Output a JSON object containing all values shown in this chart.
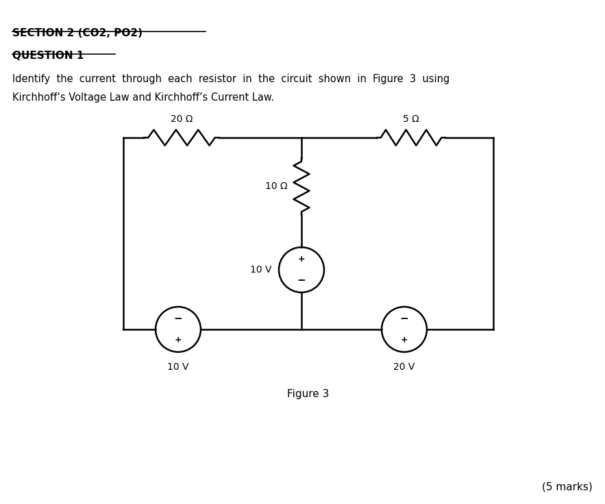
{
  "title": "SECTION 2 (CO2, PO2)",
  "question": "QUESTION 1",
  "description_line1": "Identify  the  current  through  each  resistor  in  the  circuit  shown  in  Figure  3  using",
  "description_line2": "Kirchhoff’s Voltage Law and Kirchhoff’s Current Law.",
  "figure_label": "Figure 3",
  "marks": "(5 marks)",
  "r1_label": "20 Ω",
  "r2_label": "5 Ω",
  "r3_label": "10 Ω",
  "v1_label": "10 V",
  "v2_label": "20 V",
  "v3_label": "10 V",
  "bg_color": "#ffffff",
  "line_color": "#000000"
}
